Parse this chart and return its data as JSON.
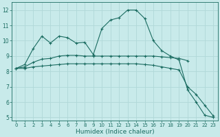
{
  "title": "",
  "xlabel": "Humidex (Indice chaleur)",
  "bg_color": "#c8eaea",
  "grid_color": "#b0d8d8",
  "line_color": "#1a6b60",
  "xlim": [
    -0.5,
    23.5
  ],
  "ylim": [
    4.8,
    12.5
  ],
  "xticks": [
    0,
    1,
    2,
    3,
    4,
    5,
    6,
    7,
    8,
    9,
    10,
    11,
    12,
    13,
    14,
    15,
    16,
    17,
    18,
    19,
    20,
    21,
    22,
    23
  ],
  "yticks": [
    5,
    6,
    7,
    8,
    9,
    10,
    11,
    12
  ],
  "line1_x": [
    0,
    1,
    2,
    3,
    4,
    5,
    6,
    7,
    8,
    9,
    10,
    11,
    12,
    13,
    14,
    15,
    16,
    17,
    18,
    19,
    20,
    21,
    22,
    23
  ],
  "line1_y": [
    8.2,
    8.45,
    9.5,
    10.3,
    9.85,
    10.3,
    10.2,
    9.85,
    9.9,
    9.1,
    10.8,
    11.35,
    11.5,
    12.0,
    12.0,
    11.45,
    10.0,
    9.35,
    9.0,
    8.75,
    6.8,
    6.0,
    5.15,
    5.0
  ],
  "line2_x": [
    0,
    1,
    2,
    3,
    4,
    5,
    6,
    7,
    8,
    9,
    10,
    11,
    12,
    13,
    14,
    15,
    16,
    17,
    18,
    19,
    20
  ],
  "line2_y": [
    8.2,
    8.3,
    8.6,
    8.8,
    8.85,
    9.0,
    9.05,
    9.05,
    9.0,
    9.0,
    9.0,
    9.0,
    9.0,
    9.0,
    9.0,
    9.0,
    9.0,
    8.95,
    8.9,
    8.85,
    8.7
  ],
  "line3_x": [
    0,
    1,
    2,
    3,
    4,
    5,
    6,
    7,
    8,
    9,
    10,
    11,
    12,
    13,
    14,
    15,
    16,
    17,
    18,
    19,
    20,
    21,
    22,
    23
  ],
  "line3_y": [
    8.2,
    8.2,
    8.3,
    8.35,
    8.4,
    8.45,
    8.5,
    8.5,
    8.5,
    8.5,
    8.5,
    8.5,
    8.5,
    8.5,
    8.5,
    8.45,
    8.4,
    8.3,
    8.2,
    8.1,
    7.0,
    6.5,
    5.8,
    5.1
  ]
}
